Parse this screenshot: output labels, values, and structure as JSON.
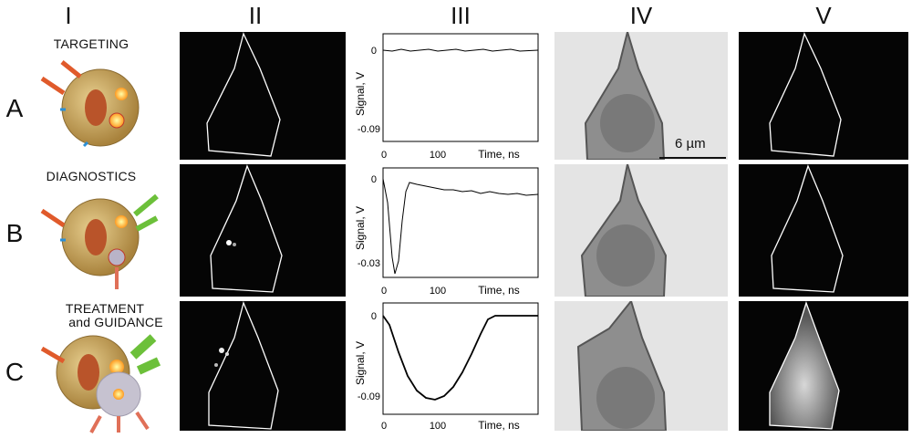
{
  "columns": [
    "I",
    "II",
    "III",
    "IV",
    "V"
  ],
  "rows": [
    {
      "id": "A",
      "label": "A",
      "stage": "TARGETING",
      "stage2": ""
    },
    {
      "id": "B",
      "label": "B",
      "stage": "DIAGNOSTICS",
      "stage2": ""
    },
    {
      "id": "C",
      "label": "C",
      "stage": "TREATMENT",
      "stage2": "and GUIDANCE"
    }
  ],
  "scale_bar": "6 µm",
  "plots": [
    {
      "row": "A",
      "ylabel": "Signal, V",
      "xlabel": "Time, ns",
      "ytick_top": "0",
      "ytick_bottom": "-0.09",
      "xtick_0": "0",
      "xtick_100": "100"
    },
    {
      "row": "B",
      "ylabel": "Signal, V",
      "xlabel": "Time, ns",
      "ytick_top": "0",
      "ytick_bottom": "-0.03",
      "xtick_0": "0",
      "xtick_100": "100"
    },
    {
      "row": "C",
      "ylabel": "Signal, V",
      "xlabel": "Time, ns",
      "ytick_top": "0",
      "ytick_bottom": "-0.09",
      "xtick_0": "0",
      "xtick_100": "100"
    }
  ],
  "colors": {
    "cell_outline": "#ffffff",
    "red_arrow": "#e05a2b",
    "green_arrow": "#6cc03a",
    "sphere": "#c8a25a"
  }
}
